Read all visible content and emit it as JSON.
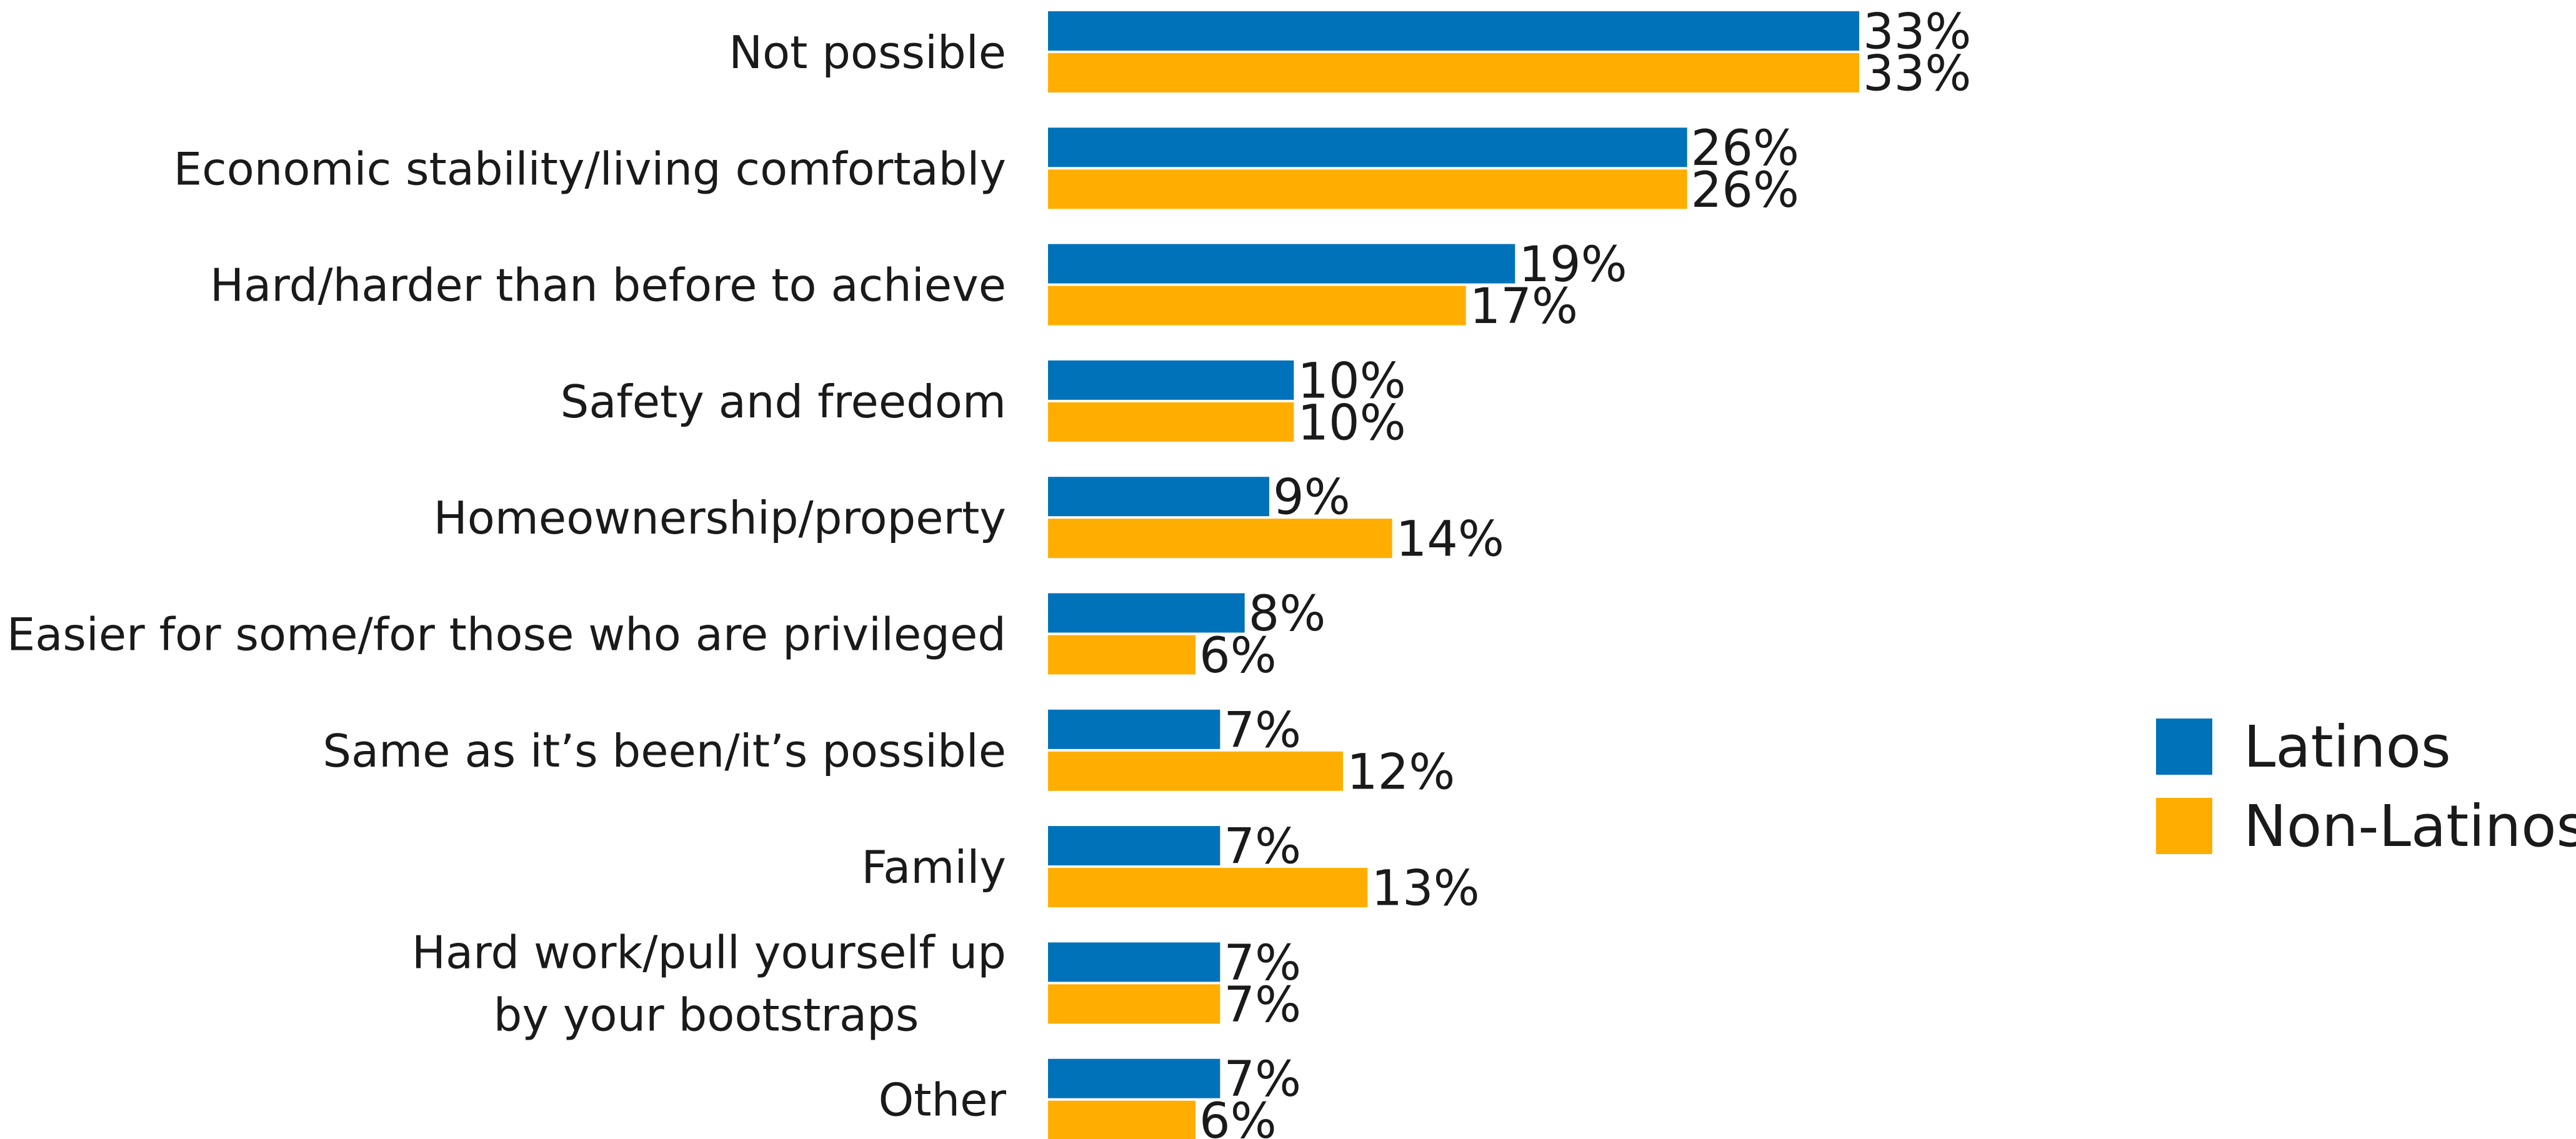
{
  "chart_data": {
    "type": "bar",
    "orientation": "horizontal",
    "title": "",
    "xlabel": "",
    "ylabel": "",
    "categories": [
      [
        "Not possible"
      ],
      [
        "Economic stability/living comfortably"
      ],
      [
        "Hard/harder than before to achieve"
      ],
      [
        "Safety and freedom"
      ],
      [
        "Homeownership/property"
      ],
      [
        "Easier for some/for those who are privileged"
      ],
      [
        "Same as it’s been/it’s possible"
      ],
      [
        "Family"
      ],
      [
        "Hard work/pull yourself up",
        "by your bootstraps"
      ],
      [
        "Other"
      ]
    ],
    "series": [
      {
        "name": "Latinos",
        "color": "#0072BA",
        "values": [
          33,
          26,
          19,
          10,
          9,
          8,
          7,
          7,
          7,
          7
        ],
        "labels": [
          "33%",
          "26%",
          "19%",
          "10%",
          "9%",
          "8%",
          "7%",
          "7%",
          "7%",
          "7%"
        ]
      },
      {
        "name": "Non-Latinos",
        "color": "#FFAE00",
        "values": [
          33,
          26,
          17,
          10,
          14,
          6,
          12,
          13,
          7,
          6
        ],
        "labels": [
          "33%",
          "26%",
          "17%",
          "10%",
          "14%",
          "6%",
          "12%",
          "13%",
          "7%",
          "6%"
        ]
      }
    ],
    "xlim": [
      0,
      33
    ],
    "grid": false,
    "legend_position": "right"
  }
}
